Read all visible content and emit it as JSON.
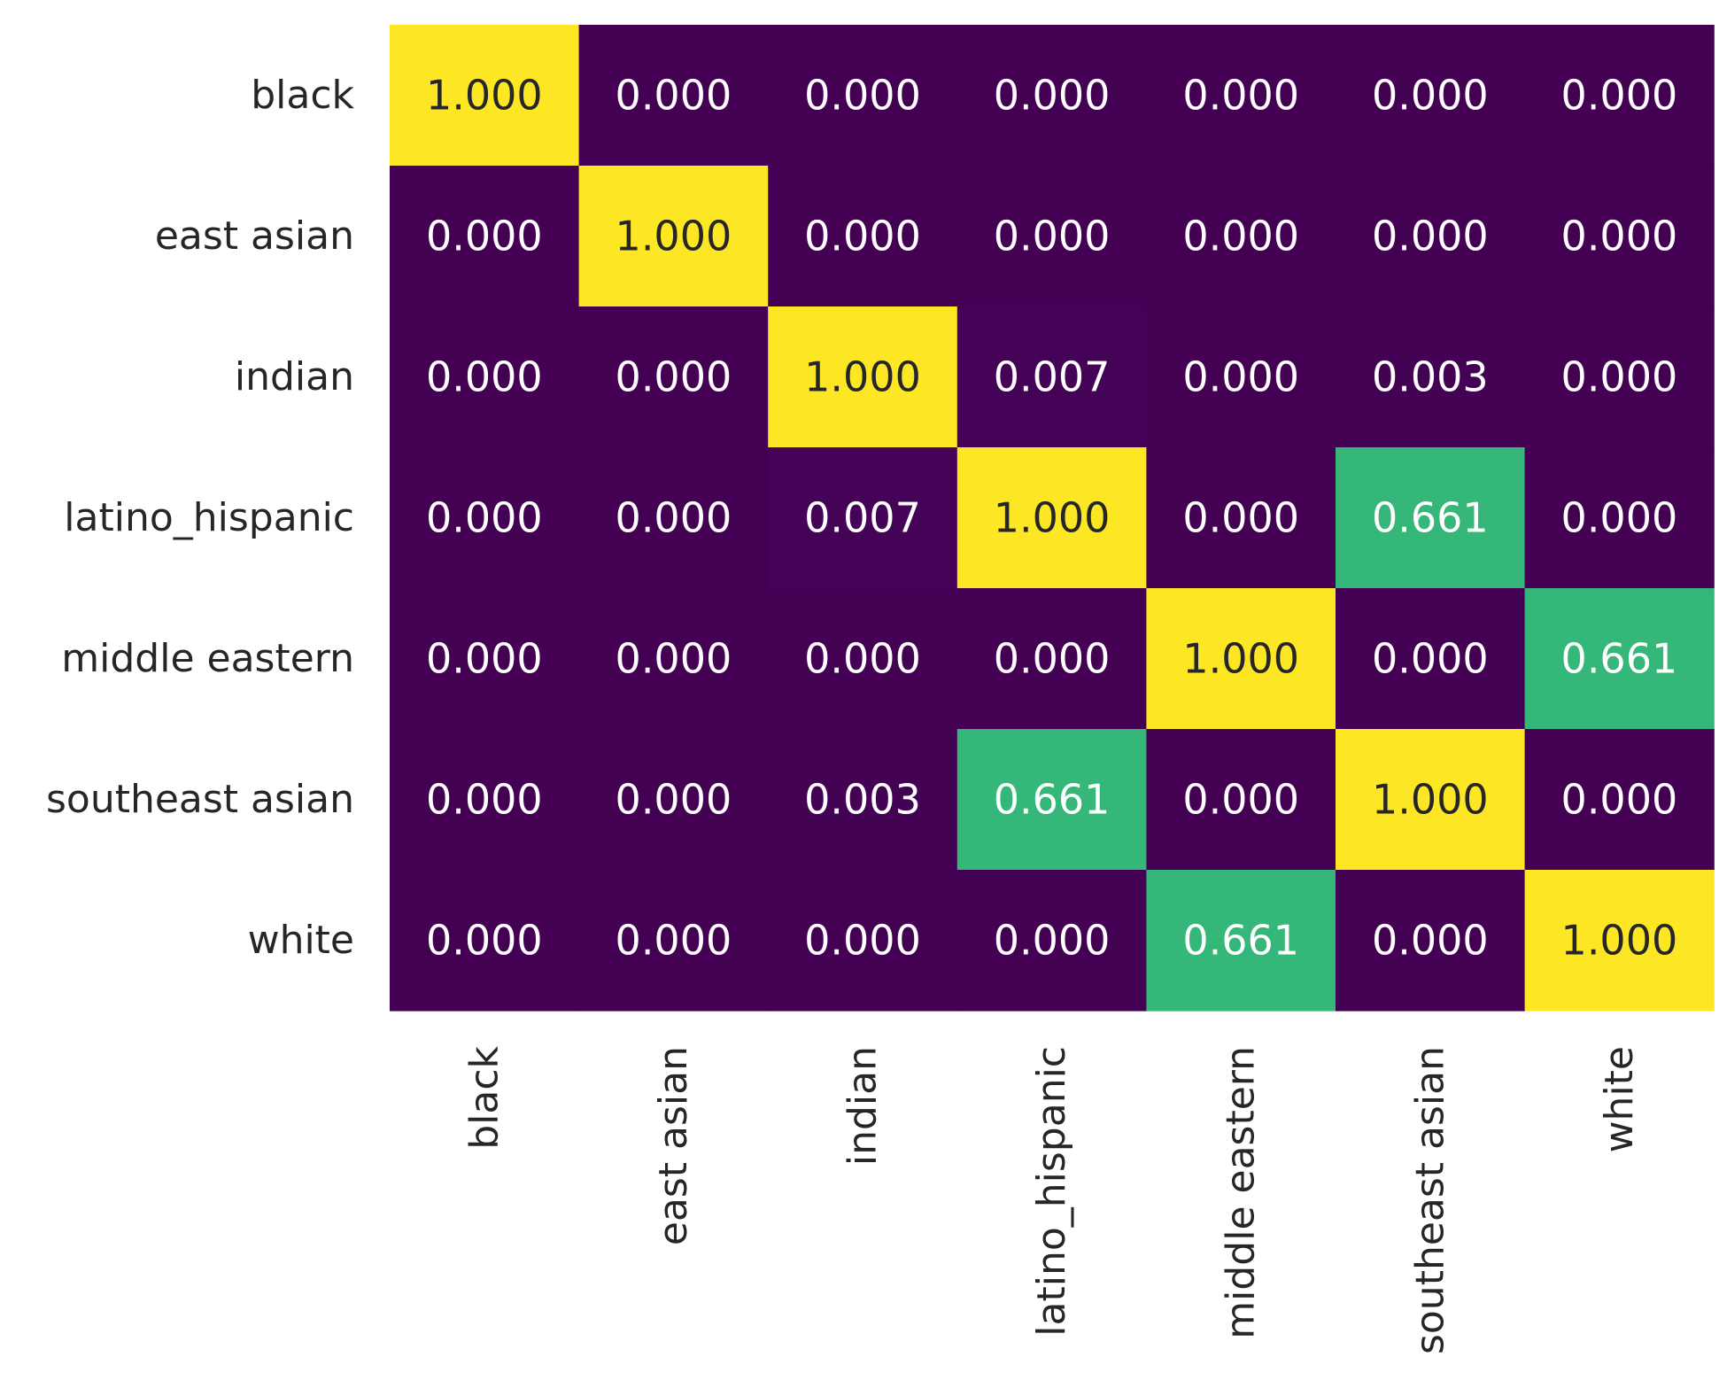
{
  "chart_data": {
    "type": "heatmap",
    "title": "",
    "xlabel": "",
    "ylabel": "",
    "row_labels": [
      "black",
      "east asian",
      "indian",
      "latino_hispanic",
      "middle eastern",
      "southeast asian",
      "white"
    ],
    "col_labels": [
      "black",
      "east asian",
      "indian",
      "latino_hispanic",
      "middle eastern",
      "southeast asian",
      "white"
    ],
    "values": [
      [
        1.0,
        0.0,
        0.0,
        0.0,
        0.0,
        0.0,
        0.0
      ],
      [
        0.0,
        1.0,
        0.0,
        0.0,
        0.0,
        0.0,
        0.0
      ],
      [
        0.0,
        0.0,
        1.0,
        0.007,
        0.0,
        0.003,
        0.0
      ],
      [
        0.0,
        0.0,
        0.007,
        1.0,
        0.0,
        0.661,
        0.0
      ],
      [
        0.0,
        0.0,
        0.0,
        0.0,
        1.0,
        0.0,
        0.661
      ],
      [
        0.0,
        0.0,
        0.003,
        0.661,
        0.0,
        1.0,
        0.0
      ],
      [
        0.0,
        0.0,
        0.0,
        0.0,
        0.661,
        0.0,
        1.0
      ]
    ],
    "value_format": "3 decimals",
    "colormap": "viridis",
    "vmin": 0,
    "vmax": 1,
    "colorbar": false,
    "grid": false,
    "colors": {
      "low": "#440154",
      "mid": "#35b779",
      "high": "#fde725",
      "label_on_dark": "#ffffff",
      "label_on_light": "#262626"
    }
  }
}
